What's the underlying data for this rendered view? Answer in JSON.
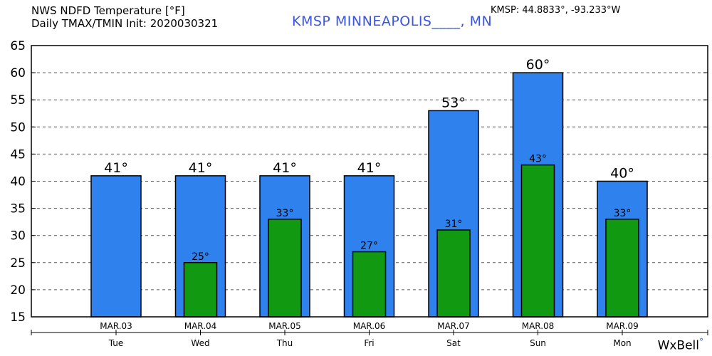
{
  "header": {
    "line1": "NWS NDFD Temperature [°F]",
    "line2": "Daily TMAX/TMIN Init: 2020030321",
    "station_title": "KMSP MINNEAPOLIS____, MN",
    "coords": "KMSP: 44.8833°, -93.233°W"
  },
  "logo": {
    "text": "WxBell",
    "dot": "°"
  },
  "colors": {
    "tmax": "#2f82ee",
    "tmin": "#119a11",
    "title": "#3a55e6"
  },
  "chart_data": {
    "type": "bar",
    "title": "NWS NDFD Temperature [°F]",
    "ylabel": "",
    "xlabel": "",
    "ylim": [
      15,
      65
    ],
    "yticks": [
      15,
      20,
      25,
      30,
      35,
      40,
      45,
      50,
      55,
      60,
      65
    ],
    "grid": "horizontal dashed",
    "categories": [
      "MAR.03",
      "MAR.04",
      "MAR.05",
      "MAR.06",
      "MAR.07",
      "MAR.08",
      "MAR.09"
    ],
    "day_labels": [
      "Tue",
      "Wed",
      "Thu",
      "Fri",
      "Sat",
      "Sun",
      "Mon"
    ],
    "series": [
      {
        "name": "TMAX",
        "values": [
          41,
          41,
          41,
          41,
          53,
          60,
          40
        ],
        "labels": [
          "41°",
          "41°",
          "41°",
          "41°",
          "53°",
          "60°",
          "40°"
        ]
      },
      {
        "name": "TMIN",
        "values": [
          null,
          25,
          33,
          27,
          31,
          43,
          33
        ],
        "labels": [
          "",
          "25°",
          "33°",
          "27°",
          "31°",
          "43°",
          "33°"
        ]
      }
    ]
  }
}
